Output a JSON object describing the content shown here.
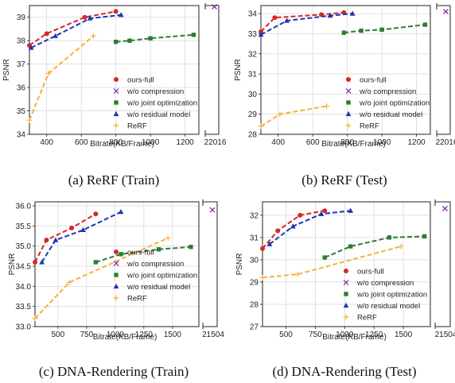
{
  "chart_data": [
    {
      "type": "line",
      "caption": "(a) ReRF (Train)",
      "xlabel": "Bitrate(KB/Frame)",
      "ylabel": "PSNR",
      "xlim": [
        300,
        1280
      ],
      "ylim": [
        34,
        39.5
      ],
      "xticks": [
        400,
        600,
        800,
        1000,
        1200
      ],
      "yticks": [
        34,
        35,
        36,
        37,
        38,
        39
      ],
      "break_tick": "22016",
      "grid": true,
      "legend_position": "lower-right",
      "series": [
        {
          "name": "ours-full",
          "color": "#d62728",
          "marker": "circle",
          "line": true,
          "points": [
            [
              300,
              37.8
            ],
            [
              400,
              38.3
            ],
            [
              620,
              39.0
            ],
            [
              800,
              39.25
            ]
          ]
        },
        {
          "name": "w/o compression",
          "color": "#7b1fa2",
          "marker": "x",
          "line": false,
          "points": [],
          "break_point": 39.45
        },
        {
          "name": "w/o joint optimization",
          "color": "#2e7d32",
          "marker": "square",
          "line": true,
          "points": [
            [
              800,
              37.95
            ],
            [
              880,
              38.0
            ],
            [
              1000,
              38.1
            ],
            [
              1250,
              38.25
            ]
          ]
        },
        {
          "name": "w/o residual model",
          "color": "#1f35b4",
          "marker": "triangle",
          "line": true,
          "points": [
            [
              310,
              37.7
            ],
            [
              450,
              38.2
            ],
            [
              650,
              38.95
            ],
            [
              830,
              39.1
            ]
          ]
        },
        {
          "name": "ReRF",
          "color": "#f5b041",
          "marker": "plus",
          "line": true,
          "points": [
            [
              300,
              34.6
            ],
            [
              410,
              36.6
            ],
            [
              670,
              38.2
            ]
          ]
        }
      ]
    },
    {
      "type": "line",
      "caption": "(b) ReRF (Test)",
      "xlabel": "Bitrate(KB/Frame)",
      "ylabel": "PSNR",
      "xlim": [
        300,
        1280
      ],
      "ylim": [
        28,
        34.4
      ],
      "xticks": [
        400,
        600,
        800,
        1000,
        1200
      ],
      "yticks": [
        28,
        29,
        30,
        31,
        32,
        33,
        34
      ],
      "break_tick": "22016",
      "grid": true,
      "legend_position": "lower-right",
      "series": [
        {
          "name": "ours-full",
          "color": "#d62728",
          "marker": "circle",
          "line": true,
          "points": [
            [
              300,
              33.1
            ],
            [
              380,
              33.8
            ],
            [
              650,
              33.95
            ],
            [
              780,
              34.05
            ]
          ]
        },
        {
          "name": "w/o compression",
          "color": "#7b1fa2",
          "marker": "x",
          "line": false,
          "points": [],
          "break_point": 34.1
        },
        {
          "name": "w/o joint optimization",
          "color": "#2e7d32",
          "marker": "square",
          "line": true,
          "points": [
            [
              780,
              33.05
            ],
            [
              880,
              33.15
            ],
            [
              1000,
              33.2
            ],
            [
              1250,
              33.45
            ]
          ]
        },
        {
          "name": "w/o residual model",
          "color": "#1f35b4",
          "marker": "triangle",
          "line": true,
          "points": [
            [
              300,
              32.95
            ],
            [
              450,
              33.65
            ],
            [
              700,
              33.9
            ],
            [
              830,
              34.0
            ]
          ]
        },
        {
          "name": "ReRF",
          "color": "#f5b041",
          "marker": "plus",
          "line": true,
          "points": [
            [
              300,
              28.4
            ],
            [
              410,
              29.0
            ],
            [
              680,
              29.4
            ]
          ]
        }
      ]
    },
    {
      "type": "line",
      "caption": "(c) DNA-Rendering (Train)",
      "xlabel": "Bitrate(KB/Frame)",
      "ylabel": "PSNR",
      "xlim": [
        300,
        1730
      ],
      "ylim": [
        33.0,
        36.1
      ],
      "xticks": [
        500,
        750,
        1000,
        1250,
        1500
      ],
      "yticks": [
        33.0,
        33.5,
        34.0,
        34.5,
        35.0,
        35.5,
        36.0
      ],
      "break_tick": "21504",
      "grid": true,
      "legend_position": "lower-right",
      "series": [
        {
          "name": "ours-full",
          "color": "#d62728",
          "marker": "circle",
          "line": true,
          "points": [
            [
              300,
              34.6
            ],
            [
              400,
              35.15
            ],
            [
              620,
              35.45
            ],
            [
              830,
              35.8
            ]
          ]
        },
        {
          "name": "w/o compression",
          "color": "#7b1fa2",
          "marker": "x",
          "line": false,
          "points": [],
          "break_point": 35.9
        },
        {
          "name": "w/o joint optimization",
          "color": "#2e7d32",
          "marker": "square",
          "line": true,
          "points": [
            [
              830,
              34.6
            ],
            [
              1050,
              34.8
            ],
            [
              1380,
              34.92
            ],
            [
              1660,
              34.98
            ]
          ]
        },
        {
          "name": "w/o residual model",
          "color": "#1f35b4",
          "marker": "triangle",
          "line": true,
          "points": [
            [
              360,
              34.6
            ],
            [
              480,
              35.15
            ],
            [
              720,
              35.4
            ],
            [
              1050,
              35.85
            ]
          ]
        },
        {
          "name": "ReRF",
          "color": "#f5b041",
          "marker": "plus",
          "line": true,
          "points": [
            [
              300,
              33.2
            ],
            [
              600,
              34.1
            ],
            [
              1460,
              35.2
            ]
          ]
        }
      ]
    },
    {
      "type": "line",
      "caption": "(d) DNA-Rendering (Test)",
      "xlabel": "Bitrate(KB/Frame)",
      "ylabel": "PSNR",
      "xlim": [
        300,
        1730
      ],
      "ylim": [
        27,
        32.6
      ],
      "xticks": [
        500,
        750,
        1000,
        1250,
        1500
      ],
      "yticks": [
        27,
        28,
        29,
        30,
        31,
        32
      ],
      "break_tick": "21504",
      "grid": true,
      "legend_position": "lower-right",
      "series": [
        {
          "name": "ours-full",
          "color": "#d62728",
          "marker": "circle",
          "line": true,
          "points": [
            [
              300,
              30.5
            ],
            [
              430,
              31.3
            ],
            [
              620,
              32.0
            ],
            [
              830,
              32.2
            ]
          ]
        },
        {
          "name": "w/o compression",
          "color": "#7b1fa2",
          "marker": "x",
          "line": false,
          "points": [],
          "break_point": 32.3
        },
        {
          "name": "w/o joint optimization",
          "color": "#2e7d32",
          "marker": "square",
          "line": true,
          "points": [
            [
              830,
              30.1
            ],
            [
              1050,
              30.6
            ],
            [
              1380,
              31.0
            ],
            [
              1680,
              31.05
            ]
          ]
        },
        {
          "name": "w/o residual model",
          "color": "#1f35b4",
          "marker": "triangle",
          "line": true,
          "points": [
            [
              360,
              30.7
            ],
            [
              560,
              31.5
            ],
            [
              800,
              32.05
            ],
            [
              1050,
              32.2
            ]
          ]
        },
        {
          "name": "ReRF",
          "color": "#f5b041",
          "marker": "plus",
          "line": true,
          "points": [
            [
              300,
              29.2
            ],
            [
              600,
              29.35
            ],
            [
              1480,
              30.6
            ]
          ]
        }
      ]
    }
  ]
}
